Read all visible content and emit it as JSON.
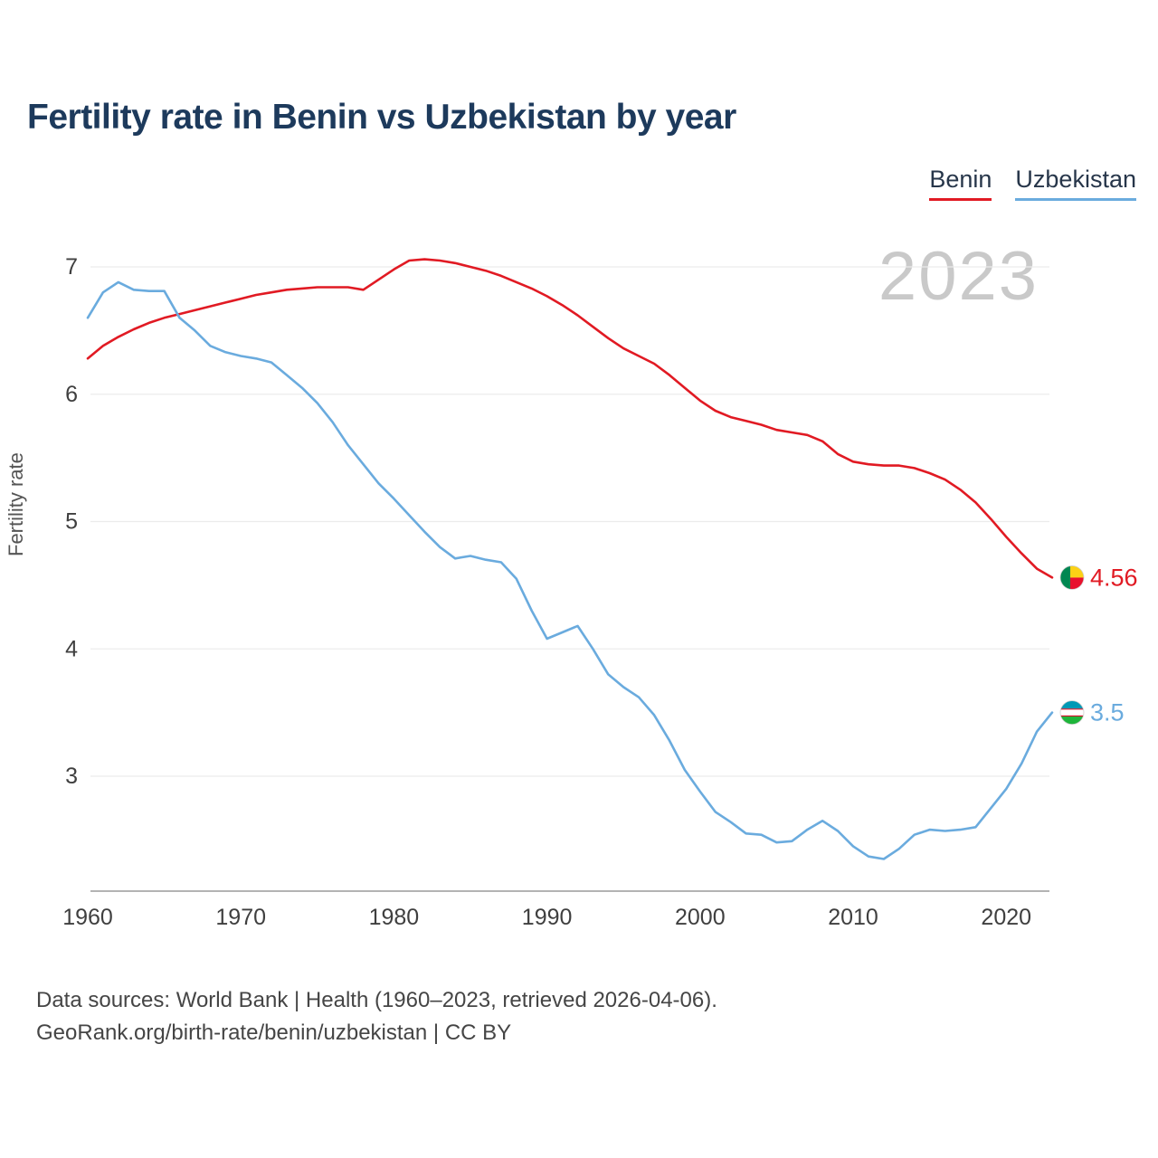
{
  "title": "Fertility rate in Benin vs Uzbekistan by year",
  "watermark": "2023",
  "ylabel": "Fertility rate",
  "legend": {
    "benin_label": "Benin",
    "uzbekistan_label": "Uzbekistan"
  },
  "colors": {
    "benin": "#e11a23",
    "uzbekistan": "#6aabde",
    "title_text": "#1d3a5c",
    "watermark": "#c9c9c9",
    "gridline": "#ececec",
    "axis": "#9a9a9a"
  },
  "end_labels": [
    {
      "series": "Benin",
      "value": "4.56"
    },
    {
      "series": "Uzbekistan",
      "value": "3.5"
    }
  ],
  "footer": {
    "line1": "Data sources: World Bank | Health (1960–2023, retrieved 2026-04-06).",
    "line2": "GeoRank.org/birth-rate/benin/uzbekistan | CC BY"
  },
  "chart_data": {
    "type": "line",
    "title": "Fertility rate in Benin vs Uzbekistan by year",
    "xlabel": "",
    "ylabel": "Fertility rate",
    "xticks": [
      1960,
      1970,
      1980,
      1990,
      2000,
      2010,
      2020
    ],
    "yticks": [
      3,
      4,
      5,
      6,
      7
    ],
    "ylim": [
      2.1,
      7.3
    ],
    "grid": "horizontal",
    "legend_position": "top-right",
    "x": [
      1960,
      1961,
      1962,
      1963,
      1964,
      1965,
      1966,
      1967,
      1968,
      1969,
      1970,
      1971,
      1972,
      1973,
      1974,
      1975,
      1976,
      1977,
      1978,
      1979,
      1980,
      1981,
      1982,
      1983,
      1984,
      1985,
      1986,
      1987,
      1988,
      1989,
      1990,
      1991,
      1992,
      1993,
      1994,
      1995,
      1996,
      1997,
      1998,
      1999,
      2000,
      2001,
      2002,
      2003,
      2004,
      2005,
      2006,
      2007,
      2008,
      2009,
      2010,
      2011,
      2012,
      2013,
      2014,
      2015,
      2016,
      2017,
      2018,
      2019,
      2020,
      2021,
      2022,
      2023
    ],
    "series": [
      {
        "name": "Benin",
        "color": "#e11a23",
        "values": [
          6.28,
          6.38,
          6.45,
          6.51,
          6.56,
          6.6,
          6.63,
          6.66,
          6.69,
          6.72,
          6.75,
          6.78,
          6.8,
          6.82,
          6.83,
          6.84,
          6.84,
          6.84,
          6.82,
          6.9,
          6.98,
          7.05,
          7.06,
          7.05,
          7.03,
          7.0,
          6.97,
          6.93,
          6.88,
          6.83,
          6.77,
          6.7,
          6.62,
          6.53,
          6.44,
          6.36,
          6.3,
          6.24,
          6.15,
          6.05,
          5.95,
          5.87,
          5.82,
          5.79,
          5.76,
          5.72,
          5.7,
          5.68,
          5.63,
          5.53,
          5.47,
          5.45,
          5.44,
          5.44,
          5.42,
          5.38,
          5.33,
          5.25,
          5.15,
          5.02,
          4.88,
          4.75,
          4.63,
          4.56
        ]
      },
      {
        "name": "Uzbekistan",
        "color": "#6aabde",
        "values": [
          6.6,
          6.8,
          6.88,
          6.82,
          6.81,
          6.81,
          6.6,
          6.5,
          6.38,
          6.33,
          6.3,
          6.28,
          6.25,
          6.15,
          6.05,
          5.93,
          5.78,
          5.6,
          5.45,
          5.3,
          5.18,
          5.05,
          4.92,
          4.8,
          4.71,
          4.73,
          4.7,
          4.68,
          4.55,
          4.3,
          4.08,
          4.13,
          4.18,
          4.0,
          3.8,
          3.7,
          3.62,
          3.48,
          3.28,
          3.05,
          2.88,
          2.72,
          2.64,
          2.55,
          2.54,
          2.48,
          2.49,
          2.58,
          2.65,
          2.57,
          2.45,
          2.37,
          2.35,
          2.43,
          2.54,
          2.58,
          2.57,
          2.58,
          2.6,
          2.75,
          2.9,
          3.1,
          3.35,
          3.5
        ]
      }
    ]
  }
}
